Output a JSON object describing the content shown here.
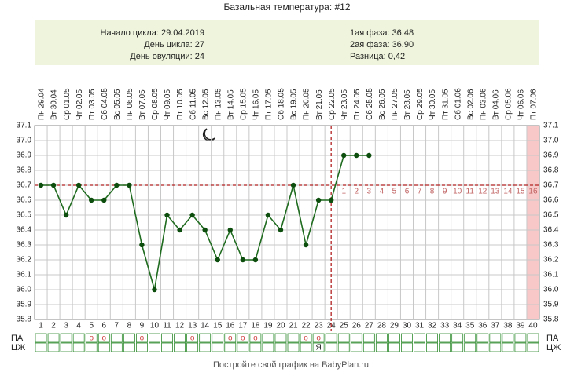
{
  "chart_data": {
    "type": "line",
    "title": "Базальная температура: #12",
    "info_left": [
      "Начало цикла: 29.04.2019",
      "День цикла: 27",
      "День овуляции: 24"
    ],
    "info_right": [
      "1ая фаза: 36.48",
      "2ая фаза: 36.90",
      "Разница: 0,42"
    ],
    "categories": [
      1,
      2,
      3,
      4,
      5,
      6,
      7,
      8,
      9,
      10,
      11,
      12,
      13,
      14,
      15,
      16,
      17,
      18,
      19,
      20,
      21,
      22,
      23,
      24,
      25,
      26,
      27,
      28,
      29,
      30,
      31,
      32,
      33,
      34,
      35,
      36,
      37,
      38,
      39,
      40
    ],
    "date_labels": [
      "Пн 29.04",
      "Вт 30.04",
      "Ср 01.05",
      "Чт 02.05",
      "Пт 03.05",
      "Сб 04.05",
      "Вс 05.05",
      "Пн 06.05",
      "Вт 07.05",
      "Ср 08.05",
      "Чт 09.05",
      "Пт 10.05",
      "Сб 11.05",
      "Вс 12.05",
      "Пн 13.05",
      "Вт 14.05",
      "Ср 15.05",
      "Чт 16.05",
      "Пт 17.05",
      "Сб 18.05",
      "Вс 19.05",
      "Пн 20.05",
      "Вт 21.05",
      "Ср 22.05",
      "Чт 23.05",
      "Пт 24.05",
      "Сб 25.05",
      "Вс 26.05",
      "Пн 27.05",
      "Вт 28.05",
      "Ср 29.05",
      "Чт 30.05",
      "Пт 31.05",
      "Сб 01.06",
      "Вс 02.06",
      "Пн 03.06",
      "Вт 04.06",
      "Ср 05.06",
      "Чт 06.06",
      "Пт 07.06"
    ],
    "series": [
      {
        "name": "Температура",
        "color": "#1f6b1f",
        "values": [
          36.7,
          36.7,
          36.5,
          36.7,
          36.6,
          36.6,
          36.7,
          36.7,
          36.3,
          36.0,
          36.5,
          36.4,
          36.5,
          36.4,
          36.2,
          36.4,
          36.2,
          36.2,
          36.5,
          36.4,
          36.7,
          36.3,
          36.6,
          36.6,
          36.9,
          36.9,
          36.9,
          null,
          null,
          null,
          null,
          null,
          null,
          null,
          null,
          null,
          null,
          null,
          null,
          null
        ]
      }
    ],
    "ylim": [
      35.8,
      37.1
    ],
    "yticks": [
      {
        "value": 35.8,
        "label": "35.8"
      },
      {
        "value": 35.9,
        "label": "35.9"
      },
      {
        "value": 36.0,
        "label": "36.0"
      },
      {
        "value": 36.1,
        "label": "36.1"
      },
      {
        "value": 36.2,
        "label": "36.2"
      },
      {
        "value": 36.3,
        "label": "36.3"
      },
      {
        "value": 36.4,
        "label": "36.4"
      },
      {
        "value": 36.5,
        "label": "36.5"
      },
      {
        "value": 36.6,
        "label": "36.6"
      },
      {
        "value": 36.7,
        "label": "36.7"
      },
      {
        "value": 36.8,
        "label": "36.8"
      },
      {
        "value": 36.9,
        "label": "36.9"
      },
      {
        "value": 37.0,
        "label": "37.0"
      },
      {
        "value": 37.1,
        "label": "37.1"
      }
    ],
    "coverline": 36.7,
    "ovulation_day": 24,
    "phase2_days": [
      1,
      2,
      3,
      4,
      5,
      6,
      7,
      8,
      9,
      10,
      11,
      12,
      13,
      14,
      15,
      16
    ],
    "row_labels": [
      "ПА",
      "ЦЖ"
    ],
    "pa": [
      null,
      null,
      null,
      null,
      "о",
      "о",
      null,
      null,
      "о",
      null,
      null,
      null,
      "о",
      null,
      null,
      "о",
      "о",
      "о",
      null,
      null,
      null,
      "о",
      "о",
      null,
      null,
      null,
      null,
      null,
      null,
      null,
      null,
      null,
      null,
      null,
      null,
      null,
      null,
      null,
      null,
      null
    ],
    "cm": [
      null,
      null,
      null,
      null,
      null,
      null,
      null,
      null,
      null,
      null,
      null,
      null,
      null,
      null,
      null,
      null,
      null,
      null,
      null,
      null,
      null,
      null,
      "Я",
      null,
      null,
      null,
      null,
      null,
      null,
      null,
      null,
      null,
      null,
      null,
      null,
      null,
      null,
      null,
      null,
      null
    ],
    "footer": "Постройте свой график на BabyPlan.ru"
  }
}
